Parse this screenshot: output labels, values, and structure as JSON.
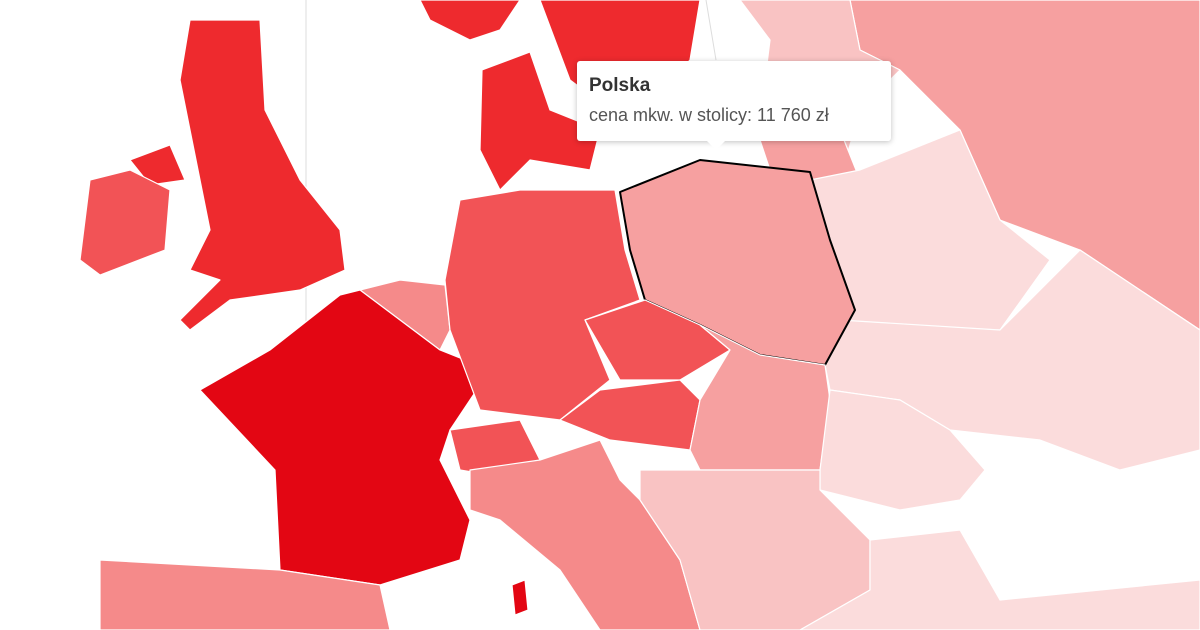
{
  "tooltip": {
    "title": "Polska",
    "label": "cena mkw. w stolicy: 11 760 zł"
  },
  "colors": {
    "sea": "#ffffff",
    "darkest": "#e30613",
    "dark": "#ee2a2e",
    "medium": "#f25356",
    "medium_light": "#f58a8a",
    "light": "#f6a0a0",
    "lighter": "#f9c3c3",
    "lightest": "#fbdcdc",
    "highlight_border": "#000000"
  }
}
